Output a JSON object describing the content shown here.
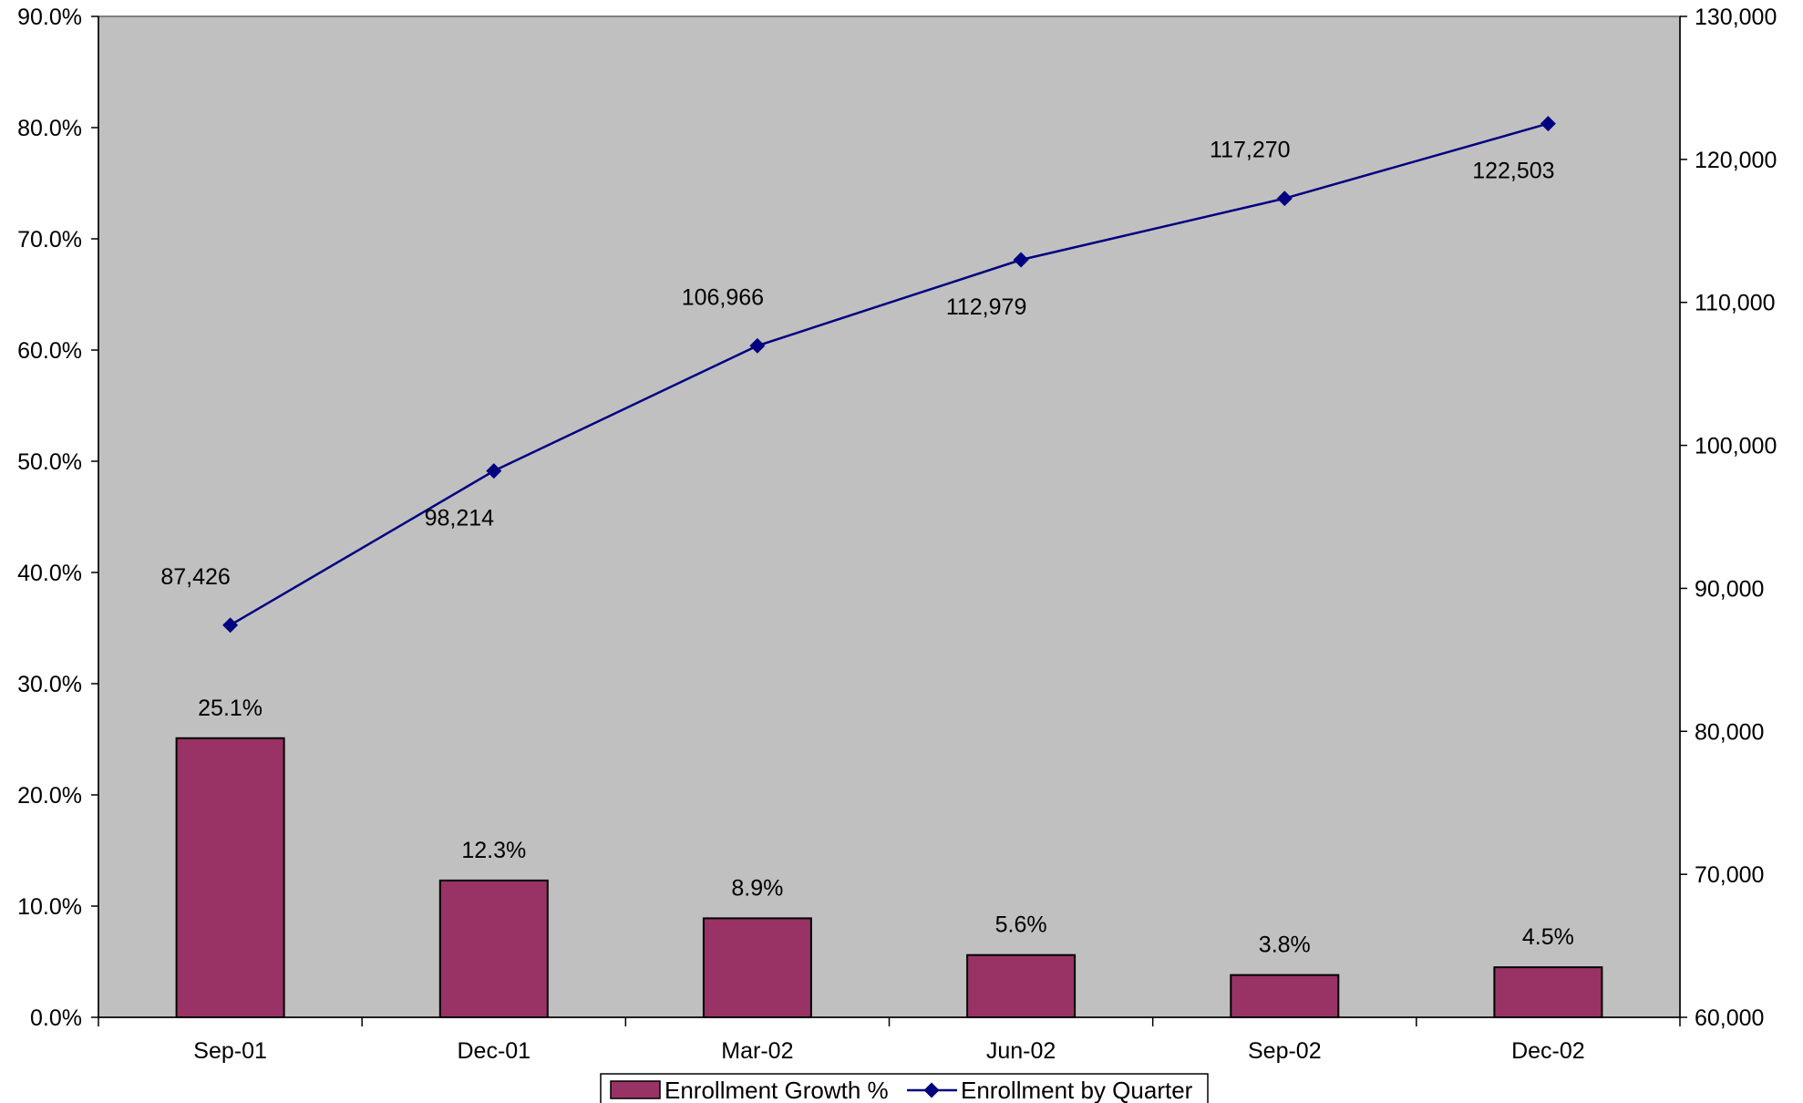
{
  "chart_data": {
    "type": "bar",
    "categories": [
      "Sep-01",
      "Dec-01",
      "Mar-02",
      "Jun-02",
      "Sep-02",
      "Dec-02"
    ],
    "series": [
      {
        "name": "Enrollment Growth %",
        "type": "bar",
        "axis": "left",
        "values": [
          25.1,
          12.3,
          8.9,
          5.6,
          3.8,
          4.5
        ],
        "labels": [
          "25.1%",
          "12.3%",
          "8.9%",
          "5.6%",
          "3.8%",
          "4.5%"
        ],
        "color": "#993366"
      },
      {
        "name": "Enrollment by Quarter",
        "type": "line",
        "axis": "right",
        "values": [
          87426,
          98214,
          106966,
          112979,
          117270,
          122503
        ],
        "labels": [
          "87,426",
          "98,214",
          "106,966",
          "112,979",
          "117,270",
          "122,503"
        ],
        "color": "#000080"
      }
    ],
    "y_left": {
      "range": [
        0,
        90
      ],
      "ticks": [
        0,
        10,
        20,
        30,
        40,
        50,
        60,
        70,
        80,
        90
      ],
      "tick_labels": [
        "0.0%",
        "10.0%",
        "20.0%",
        "30.0%",
        "40.0%",
        "50.0%",
        "60.0%",
        "70.0%",
        "80.0%",
        "90.0%"
      ]
    },
    "y_right": {
      "range": [
        60000,
        130000
      ],
      "ticks": [
        60000,
        70000,
        80000,
        90000,
        100000,
        110000,
        120000,
        130000
      ],
      "tick_labels": [
        "60,000",
        "70,000",
        "80,000",
        "90,000",
        "100,000",
        "110,000",
        "120,000",
        "130,000"
      ]
    },
    "plot_background": "#c0c0c0",
    "grid": false,
    "legend": {
      "placement": "bottom-center"
    }
  }
}
